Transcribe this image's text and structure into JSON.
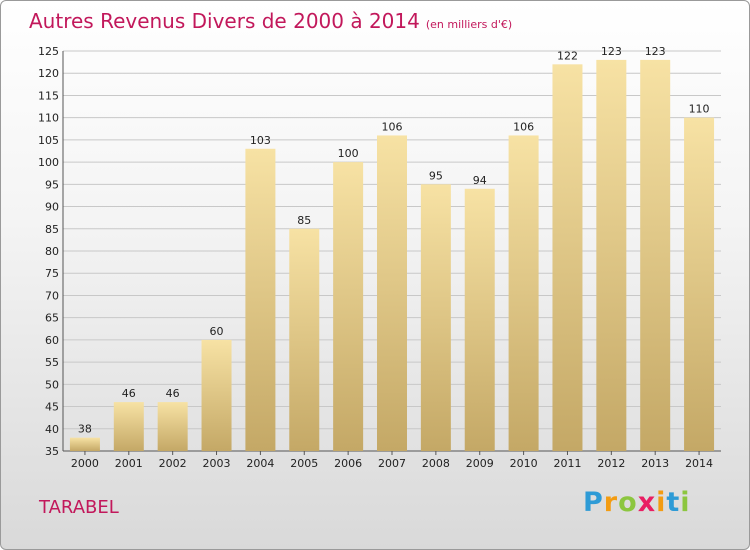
{
  "header": {
    "title": "Autres Revenus Divers de 2000 à 2014",
    "unit": "(en milliers d'€)"
  },
  "footer": {
    "commune": "TARABEL",
    "brand": "Proxiti",
    "brand_letters": [
      {
        "ch": "P",
        "color": "#2e9bd6"
      },
      {
        "ch": "r",
        "color": "#f39c12"
      },
      {
        "ch": "o",
        "color": "#8cc63f"
      },
      {
        "ch": "x",
        "color": "#e91e63"
      },
      {
        "ch": "i",
        "color": "#f39c12"
      },
      {
        "ch": "t",
        "color": "#2e9bd6"
      },
      {
        "ch": "i",
        "color": "#8cc63f"
      }
    ]
  },
  "colors": {
    "title": "#c2185b",
    "bar_top": "#f7e2a4",
    "bar_bottom": "#c4a866",
    "grid": "#c8c8c8"
  },
  "chart_data": {
    "type": "bar",
    "title": "Autres Revenus Divers de 2000 à 2014",
    "categories": [
      "2000",
      "2001",
      "2002",
      "2003",
      "2004",
      "2005",
      "2006",
      "2007",
      "2008",
      "2009",
      "2010",
      "2011",
      "2012",
      "2013",
      "2014"
    ],
    "values": [
      38,
      46,
      46,
      60,
      103,
      85,
      100,
      106,
      95,
      94,
      106,
      122,
      123,
      123,
      110
    ],
    "ylim": [
      35,
      125
    ],
    "yticks": [
      35,
      40,
      45,
      50,
      55,
      60,
      65,
      70,
      75,
      80,
      85,
      90,
      95,
      100,
      105,
      110,
      115,
      120,
      125
    ],
    "grid": true,
    "xlabel": "",
    "ylabel": ""
  }
}
